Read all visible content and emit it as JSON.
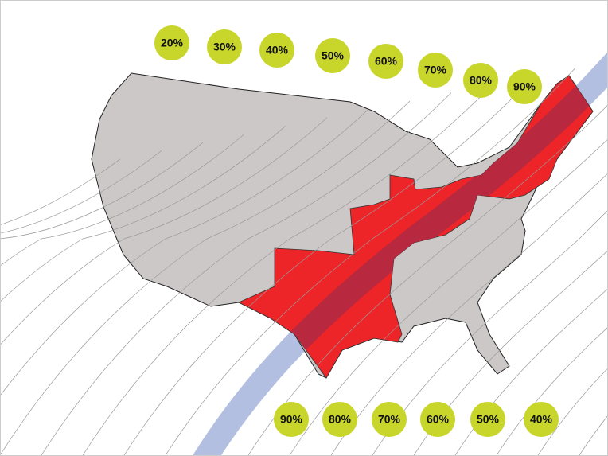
{
  "labels_top": [
    "20%",
    "30%",
    "40%",
    "50%",
    "60%",
    "70%",
    "80%",
    "90%"
  ],
  "labels_bottom": [
    "90%",
    "80%",
    "70%",
    "60%",
    "50%",
    "40%"
  ]
}
